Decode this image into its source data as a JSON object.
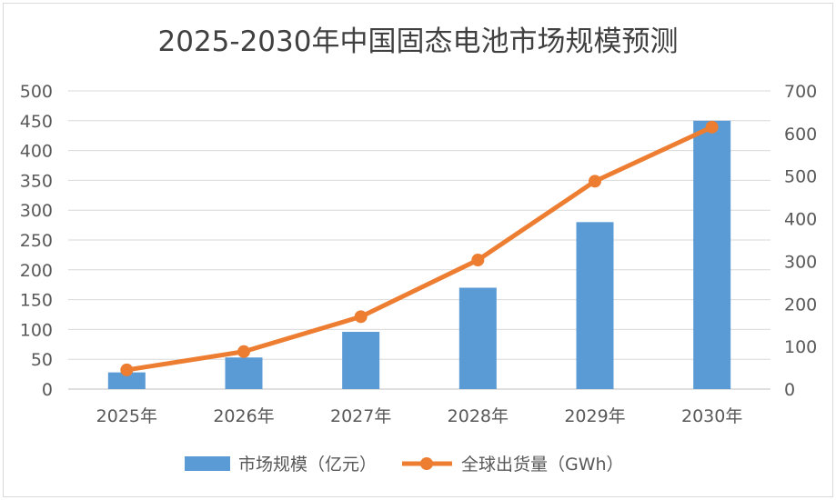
{
  "chart_data": {
    "type": "bar+line",
    "title": "2025-2030年中国固态电池市场规模预测",
    "categories": [
      "2025年",
      "2026年",
      "2027年",
      "2028年",
      "2029年",
      "2030年"
    ],
    "series": [
      {
        "name": "市场规模（亿元）",
        "type": "bar",
        "axis": "left",
        "values": [
          28,
          53,
          96,
          170,
          280,
          450
        ],
        "color": "#5b9bd5"
      },
      {
        "name": "全球出货量（GWh）",
        "type": "line",
        "axis": "right",
        "values": [
          45,
          88,
          170,
          303,
          488,
          615
        ],
        "color": "#ed7d31"
      }
    ],
    "left_axis": {
      "ylim": [
        0,
        500
      ],
      "ticks": [
        "0",
        "50",
        "100",
        "150",
        "200",
        "250",
        "300",
        "350",
        "400",
        "450",
        "500"
      ]
    },
    "right_axis": {
      "ylim": [
        0,
        700
      ],
      "ticks": [
        "0",
        "100",
        "200",
        "300",
        "400",
        "500",
        "600",
        "700"
      ]
    },
    "grid": true,
    "legend_position": "bottom"
  }
}
